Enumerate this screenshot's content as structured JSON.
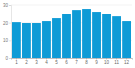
{
  "chart_data": {
    "type": "bar",
    "categories": [
      "1",
      "2",
      "3",
      "4",
      "5",
      "6",
      "7",
      "8",
      "9",
      "10",
      "11",
      "12"
    ],
    "values": [
      20.3,
      19.8,
      19.8,
      20.9,
      22.6,
      24.9,
      27.1,
      27.7,
      26,
      24.9,
      23.7,
      20.9
    ],
    "color": "#0e9bd6",
    "ylim": [
      0,
      30
    ],
    "yticks": [
      0,
      10,
      20,
      30
    ],
    "grid": true
  }
}
